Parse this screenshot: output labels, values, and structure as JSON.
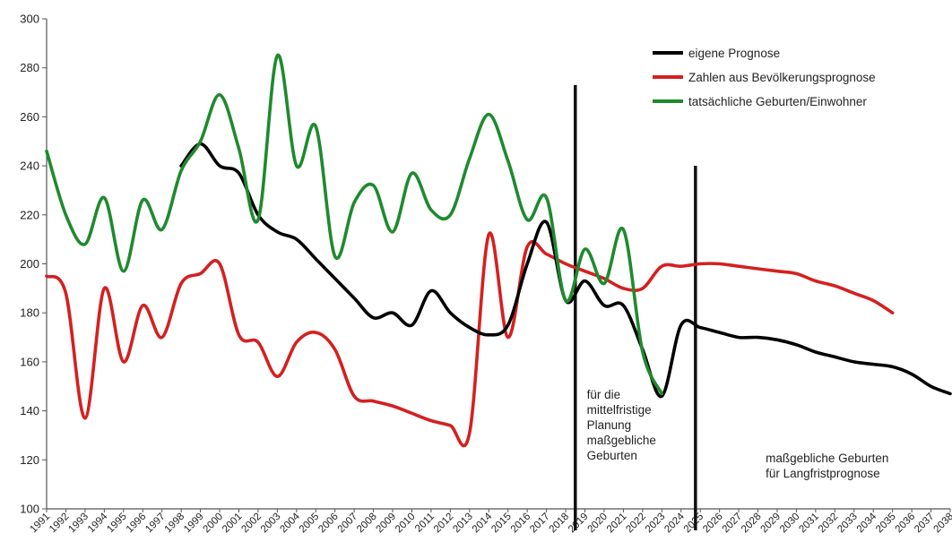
{
  "chart_data": {
    "type": "line",
    "ylim": [
      100,
      300
    ],
    "yticks": [
      100,
      120,
      140,
      160,
      180,
      200,
      220,
      240,
      260,
      280,
      300
    ],
    "x": [
      1991,
      1992,
      1993,
      1994,
      1995,
      1996,
      1997,
      1998,
      1999,
      2000,
      2001,
      2002,
      2003,
      2004,
      2005,
      2006,
      2007,
      2008,
      2009,
      2010,
      2011,
      2012,
      2013,
      2014,
      2015,
      2016,
      2017,
      2018,
      2019,
      2020,
      2021,
      2022,
      2023,
      2024,
      2025,
      2026,
      2027,
      2028,
      2029,
      2030,
      2031,
      2032,
      2033,
      2034,
      2035,
      2036,
      2037,
      2038
    ],
    "grid": false,
    "legend_position": "top-right",
    "series": [
      {
        "name": "eigene Prognose",
        "color": "#000000",
        "x": [
          1998,
          1999,
          2000,
          2001,
          2002,
          2003,
          2004,
          2005,
          2006,
          2007,
          2008,
          2009,
          2010,
          2011,
          2012,
          2013,
          2014,
          2015,
          2016,
          2017,
          2018,
          2019,
          2020,
          2021,
          2022,
          2023,
          2024,
          2025,
          2026,
          2027,
          2028,
          2029,
          2030,
          2031,
          2032,
          2033,
          2034,
          2035,
          2036,
          2037,
          2038
        ],
        "values": [
          240,
          249,
          240,
          237,
          220,
          213,
          210,
          202,
          194,
          186,
          178,
          180,
          175,
          189,
          180,
          174,
          171,
          175,
          200,
          217,
          185,
          193,
          183,
          183,
          165,
          146,
          175,
          174,
          172,
          170,
          170,
          169,
          167,
          164,
          162,
          160,
          159,
          158,
          155,
          150,
          147
        ]
      },
      {
        "name": "Zahlen aus Bevölkerungsprognose",
        "color": "#d42020",
        "x": [
          1991,
          1992,
          1993,
          1994,
          1995,
          1996,
          1997,
          1998,
          1999,
          2000,
          2001,
          2002,
          2003,
          2004,
          2005,
          2006,
          2007,
          2008,
          2009,
          2010,
          2011,
          2012,
          2013,
          2014,
          2015,
          2016,
          2017,
          2018,
          2019,
          2020,
          2021,
          2022,
          2023,
          2024,
          2025,
          2026,
          2027,
          2028,
          2029,
          2030,
          2031,
          2032,
          2033,
          2034,
          2035
        ],
        "values": [
          195,
          188,
          137,
          190,
          160,
          183,
          170,
          192,
          196,
          200,
          171,
          168,
          154,
          168,
          172,
          165,
          146,
          144,
          142,
          139,
          136,
          134,
          131,
          212,
          170,
          207,
          204,
          200,
          197,
          194,
          190,
          190,
          199,
          199,
          200,
          200,
          199,
          198,
          197,
          196,
          193,
          191,
          188,
          185,
          180
        ]
      },
      {
        "name": "tatsächliche Geburten/Einwohner",
        "color": "#1e8a2e",
        "x": [
          1991,
          1992,
          1993,
          1994,
          1995,
          1996,
          1997,
          1998,
          1999,
          2000,
          2001,
          2002,
          2003,
          2004,
          2005,
          2006,
          2007,
          2008,
          2009,
          2010,
          2011,
          2012,
          2013,
          2014,
          2015,
          2016,
          2017,
          2018,
          2019,
          2020,
          2021,
          2022,
          2023
        ],
        "values": [
          246,
          220,
          208,
          227,
          197,
          226,
          214,
          238,
          250,
          269,
          247,
          218,
          285,
          240,
          256,
          203,
          225,
          232,
          213,
          237,
          222,
          220,
          243,
          261,
          242,
          218,
          227,
          185,
          206,
          192,
          214,
          164,
          147
        ]
      }
    ],
    "vertical_markers": [
      {
        "x": 2018.5,
        "y_top": 273,
        "y_bottom": 100
      },
      {
        "x": 2024.75,
        "y_top": 240,
        "y_bottom": 100
      }
    ],
    "annotations": [
      {
        "lines": [
          "für die",
          "mittelfristige",
          "Planung",
          "maßgebliche",
          "Geburten"
        ],
        "x": 2019.1,
        "y": 145
      },
      {
        "lines": [
          "maßgebliche Geburten",
          "für Langfristprognose"
        ],
        "x": 2028.4,
        "y": 119
      }
    ]
  }
}
